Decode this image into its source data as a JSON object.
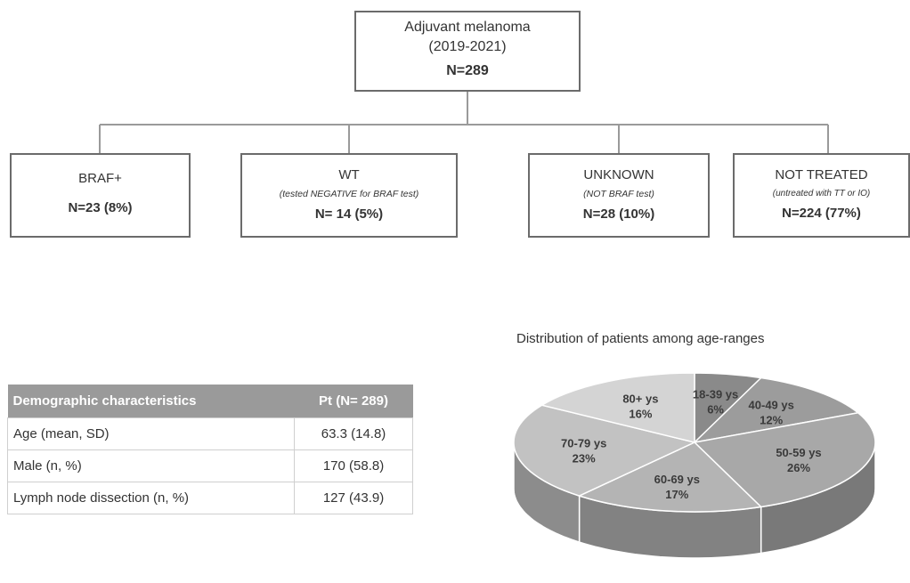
{
  "flow": {
    "root": {
      "title": "Adjuvant melanoma",
      "years": "(2019-2021)",
      "n": "N=289"
    },
    "children": [
      {
        "label": "BRAF+",
        "sub": "",
        "n": "N=23 (8%)"
      },
      {
        "label": "WT",
        "sub": "(tested NEGATIVE for BRAF test)",
        "n": "N= 14 (5%)"
      },
      {
        "label": "UNKNOWN",
        "sub": "(NOT BRAF test)",
        "n": "N=28 (10%)"
      },
      {
        "label": "NOT TREATED",
        "sub": "(untreated with TT or IO)",
        "n": "N=224 (77%)"
      }
    ]
  },
  "table": {
    "headers": [
      "Demographic characteristics",
      "Pt (N= 289)"
    ],
    "rows": [
      [
        "Age (mean, SD)",
        "63.3 (14.8)"
      ],
      [
        "Male (n, %)",
        "170 (58.8)"
      ],
      [
        "Lymph node dissection (n, %)",
        "127 (43.9)"
      ]
    ]
  },
  "chart_data": {
    "type": "pie",
    "title": "Distribution of patients among age-ranges",
    "slices": [
      {
        "label": "18-39 ys",
        "value": 6,
        "value_label": "6%",
        "color": "#8a8a8a"
      },
      {
        "label": "40-49 ys",
        "value": 12,
        "value_label": "12%",
        "color": "#9c9c9c"
      },
      {
        "label": "50-59 ys",
        "value": 26,
        "value_label": "26%",
        "color": "#a8a8a8"
      },
      {
        "label": "60-69 ys",
        "value": 17,
        "value_label": "17%",
        "color": "#b4b4b4"
      },
      {
        "label": "70-79 ys",
        "value": 23,
        "value_label": "23%",
        "color": "#c2c2c2"
      },
      {
        "label": "80+ ys",
        "value": 16,
        "value_label": "16%",
        "color": "#d4d4d4"
      }
    ]
  }
}
